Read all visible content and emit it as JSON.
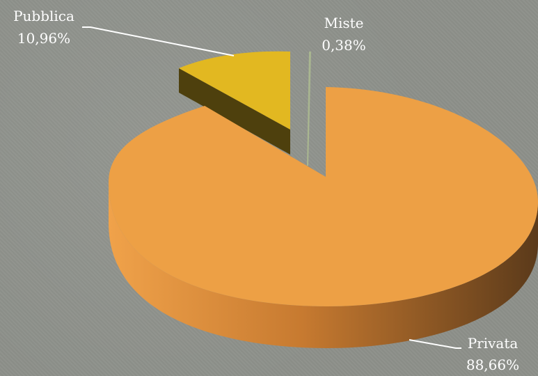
{
  "chart_data": {
    "type": "pie",
    "slices": [
      {
        "label": "Privata",
        "value": 88.66,
        "value_label": "88,66%",
        "color": "#eda045",
        "side_color": "#5e3b1a"
      },
      {
        "label": "Pubblica",
        "value": 10.96,
        "value_label": "10,96%",
        "color": "#e2b821",
        "side_color": "#5a4a10"
      },
      {
        "label": "Miste",
        "value": 0.38,
        "value_label": "0,38%",
        "color": "#a9b690",
        "side_color": "#55603f"
      }
    ],
    "style": "3d-exploded",
    "background_color": "#8d908a"
  }
}
